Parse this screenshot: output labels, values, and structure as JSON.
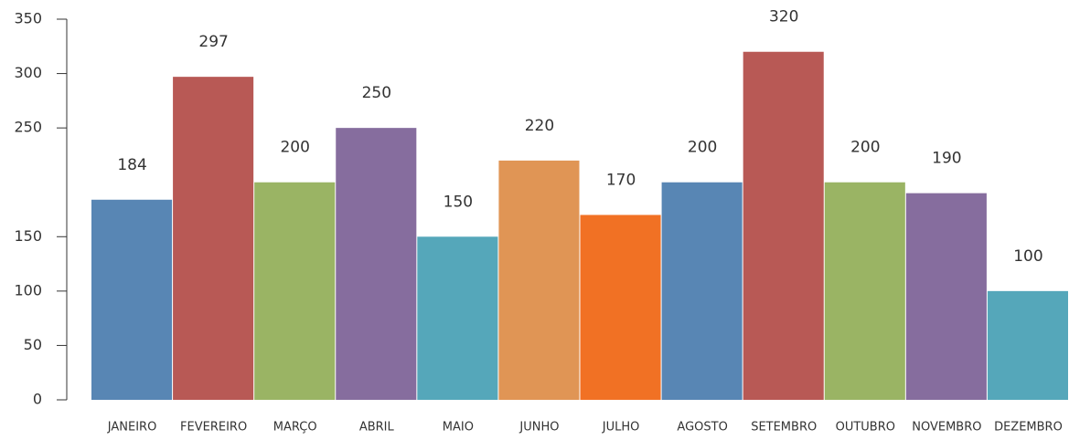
{
  "chart_data": {
    "type": "bar",
    "categories": [
      "JANEIRO",
      "FEVEREIRO",
      "MARÇO",
      "ABRIL",
      "MAIO",
      "JUNHO",
      "JULHO",
      "AGOSTO",
      "SETEMBRO",
      "OUTUBRO",
      "NOVEMBRO",
      "DEZEMBRO"
    ],
    "values": [
      184,
      297,
      200,
      250,
      150,
      220,
      170,
      200,
      320,
      200,
      190,
      100
    ],
    "colors": [
      "#5886b4",
      "#b85955",
      "#9ab464",
      "#866d9e",
      "#55a7ba",
      "#e09555",
      "#f17124",
      "#5886b4",
      "#b85955",
      "#9ab464",
      "#866d9e",
      "#55a7ba"
    ],
    "ylim": [
      0,
      350
    ],
    "yticks": [
      0,
      50,
      100,
      150,
      250,
      300,
      350
    ],
    "grid": false
  }
}
